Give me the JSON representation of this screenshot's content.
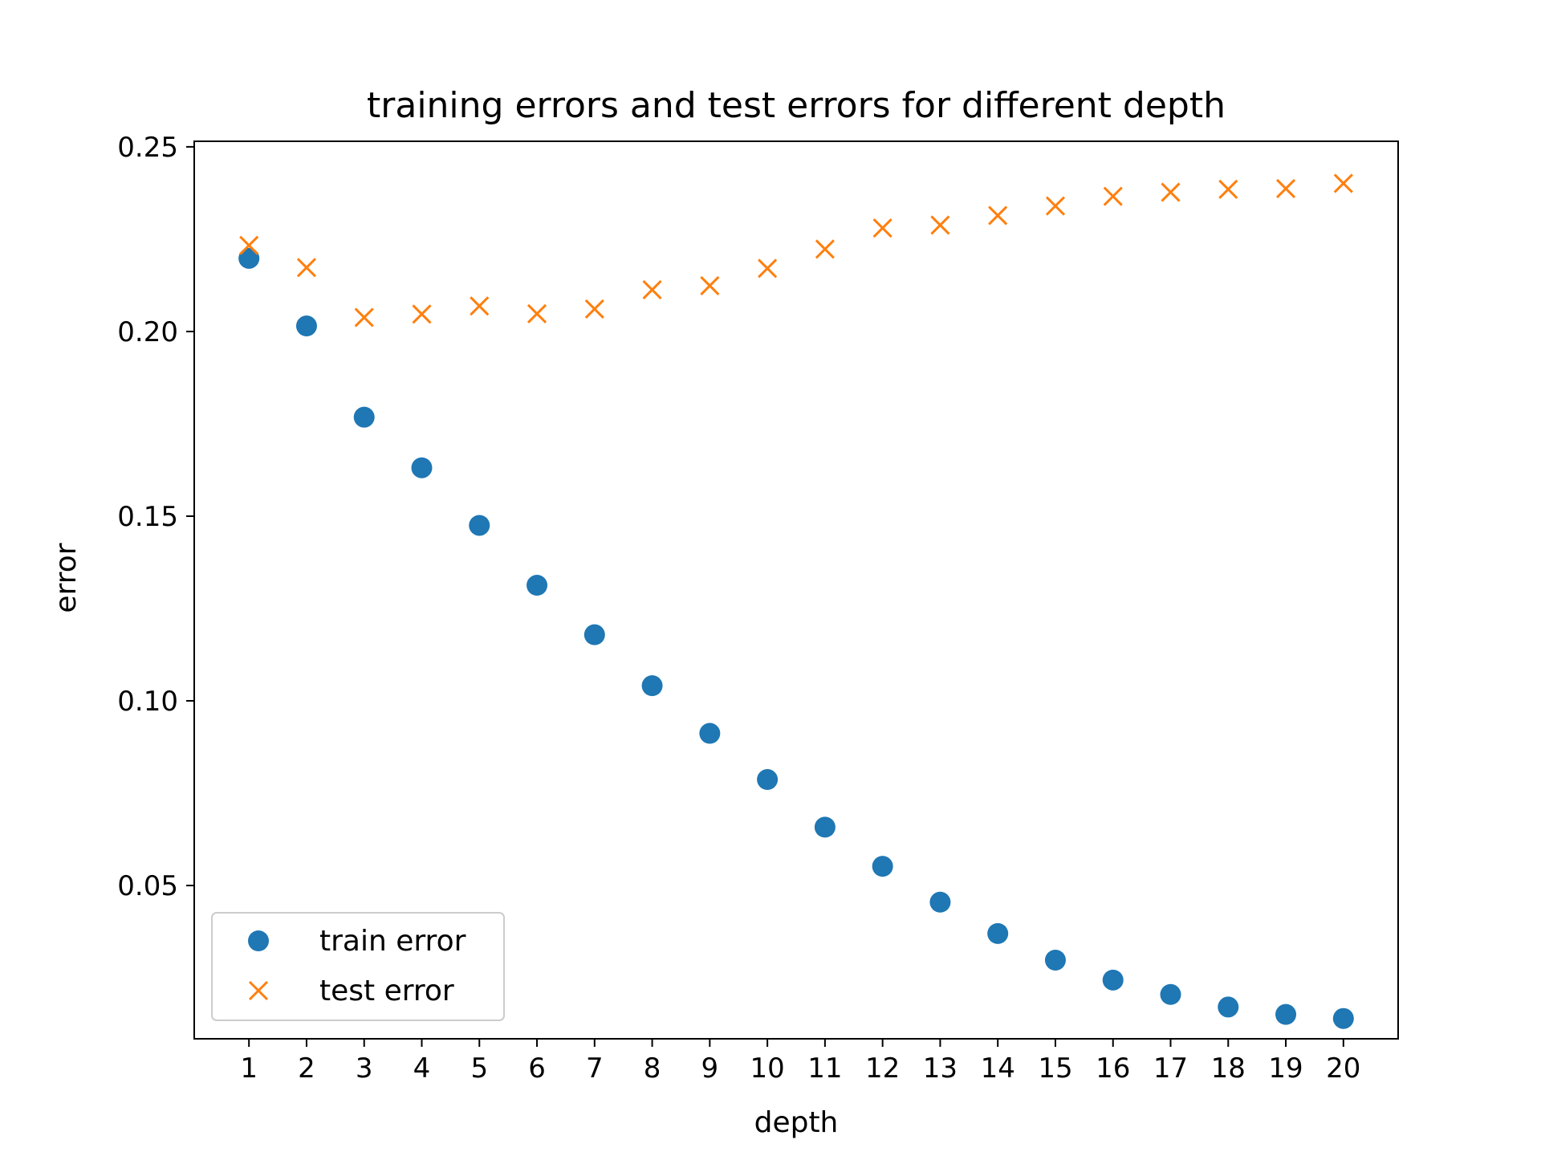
{
  "chart_data": {
    "type": "scatter",
    "title": "training errors and test errors for different depth",
    "xlabel": "depth",
    "ylabel": "error",
    "x": [
      1,
      2,
      3,
      4,
      5,
      6,
      7,
      8,
      9,
      10,
      11,
      12,
      13,
      14,
      15,
      16,
      17,
      18,
      19,
      20
    ],
    "x_ticks": [
      "1",
      "2",
      "3",
      "4",
      "5",
      "6",
      "7",
      "8",
      "9",
      "10",
      "11",
      "12",
      "13",
      "14",
      "15",
      "16",
      "17",
      "18",
      "19",
      "20"
    ],
    "y_ticks": [
      "0.05",
      "0.10",
      "0.15",
      "0.20",
      "0.25"
    ],
    "xlim": [
      0.05,
      20.95
    ],
    "ylim": [
      0.0085,
      0.2515
    ],
    "grid": false,
    "legend_position": "lower-left",
    "series": [
      {
        "name": "train error",
        "marker": "circle",
        "color": "#1f77b4",
        "values": [
          0.2198,
          0.2015,
          0.1768,
          0.1631,
          0.1475,
          0.1313,
          0.1179,
          0.1041,
          0.0912,
          0.0787,
          0.0658,
          0.0552,
          0.0455,
          0.037,
          0.0298,
          0.0244,
          0.0205,
          0.0171,
          0.0151,
          0.014
        ]
      },
      {
        "name": "test error",
        "marker": "x",
        "color": "#ff7f0e",
        "values": [
          0.2233,
          0.2173,
          0.2038,
          0.2047,
          0.2069,
          0.2048,
          0.2061,
          0.2113,
          0.2124,
          0.2171,
          0.2223,
          0.228,
          0.2288,
          0.2314,
          0.234,
          0.2366,
          0.2377,
          0.2385,
          0.2387,
          0.2401
        ]
      }
    ]
  }
}
